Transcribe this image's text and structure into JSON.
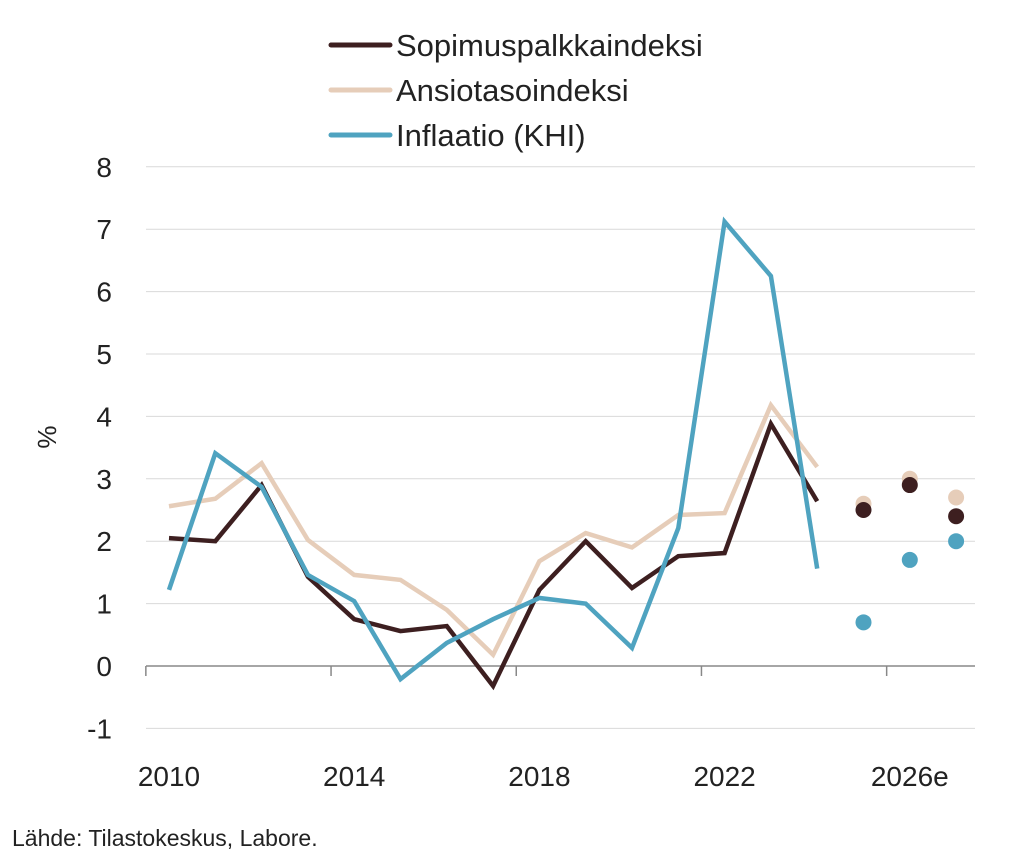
{
  "chart_data": {
    "type": "line",
    "ylabel": "%",
    "ylim": [
      -1,
      8
    ],
    "yticks": [
      -1,
      0,
      1,
      2,
      3,
      4,
      5,
      6,
      7,
      8
    ],
    "x": [
      2010,
      2011,
      2012,
      2013,
      2014,
      2015,
      2016,
      2017,
      2018,
      2019,
      2020,
      2021,
      2022,
      2023,
      2024
    ],
    "forecast_x": [
      2025,
      2026,
      2027
    ],
    "xtick_labels": [
      {
        "year": 2010,
        "label": "2010"
      },
      {
        "year": 2014,
        "label": "2014"
      },
      {
        "year": 2018,
        "label": "2018"
      },
      {
        "year": 2022,
        "label": "2022"
      },
      {
        "year": 2026,
        "label": "2026e"
      }
    ],
    "grid": true,
    "legend_placement": "top",
    "series": [
      {
        "name": "Sopimuspalkkaindeksi",
        "color": "#3d1f20",
        "values": [
          2.05,
          2.0,
          2.9,
          1.43,
          0.75,
          0.56,
          0.64,
          -0.32,
          1.22,
          2.0,
          1.25,
          1.76,
          1.81,
          3.88,
          2.64
        ],
        "forecast": [
          2.5,
          2.9,
          2.4
        ]
      },
      {
        "name": "Ansiotasoindeksi",
        "color": "#e6cdb9",
        "values": [
          2.56,
          2.68,
          3.25,
          2.02,
          1.46,
          1.38,
          0.9,
          0.18,
          1.68,
          2.13,
          1.9,
          2.42,
          2.45,
          4.18,
          3.19
        ],
        "forecast": [
          2.6,
          3.0,
          2.7
        ]
      },
      {
        "name": "Inflaatio (KHI)",
        "color": "#4fa3c0",
        "values": [
          1.22,
          3.41,
          2.87,
          1.46,
          1.04,
          -0.21,
          0.37,
          0.75,
          1.09,
          1.0,
          0.29,
          2.21,
          7.12,
          6.25,
          1.56
        ],
        "forecast": [
          0.7,
          1.7,
          2.0
        ]
      }
    ]
  },
  "source": "Lähde: Tilastokeskus, Labore."
}
